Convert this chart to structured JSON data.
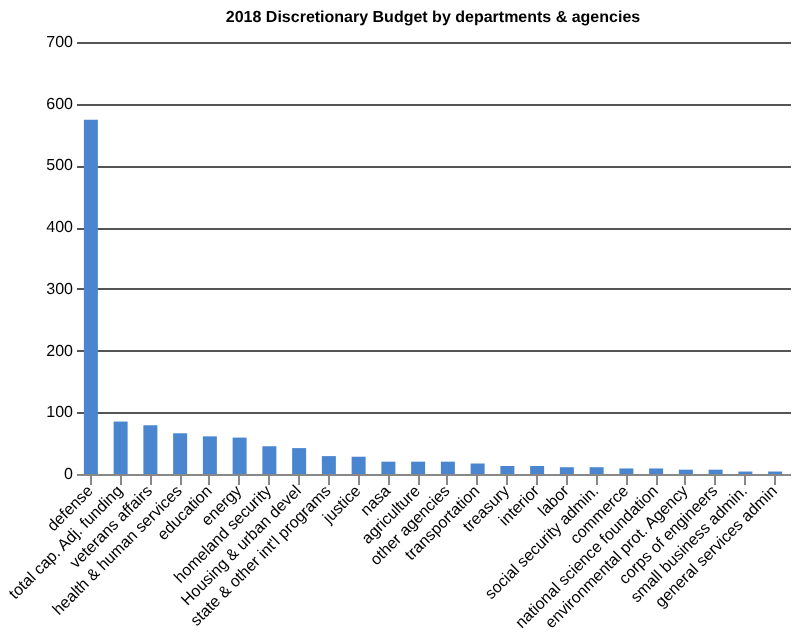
{
  "chart_data": {
    "type": "bar",
    "title": "2018 Discretionary Budget by departments & agencies",
    "categories": [
      "defense",
      "total cap. Adj. funding",
      "veterans affairs",
      "health & human services",
      "education",
      "energy",
      "homeland security",
      "Housing & urban devel",
      "state & other int'l programs",
      "justice",
      "nasa",
      "agriculture",
      "other agencies",
      "transportation",
      "treasury",
      "interior",
      "labor",
      "social security admin.",
      "commerce",
      "national science foundation",
      "environmental prot. Agency",
      "corps of engineers",
      "small business admin.",
      "general services admin"
    ],
    "values": [
      574,
      85,
      79,
      66,
      61,
      59,
      45,
      42,
      29,
      28,
      20,
      20,
      20,
      17,
      13,
      13,
      11,
      11,
      9,
      9,
      7,
      7,
      4,
      4
    ],
    "color": "#4a86d0",
    "ylim": [
      0,
      700
    ],
    "yticks": [
      0,
      100,
      200,
      300,
      400,
      500,
      600,
      700
    ],
    "grid": "y"
  }
}
